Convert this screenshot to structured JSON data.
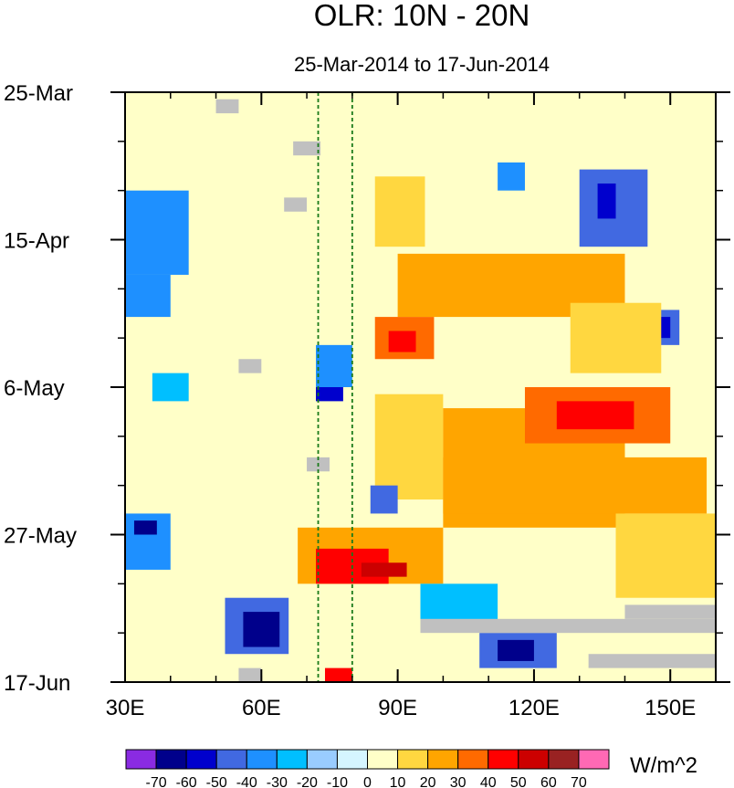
{
  "chart_data": {
    "type": "heatmap",
    "title": "OLR: 10N - 20N",
    "subtitle": "25-Mar-2014 to 17-Jun-2014",
    "x_ticks": [
      {
        "value": 30,
        "label": "30E"
      },
      {
        "value": 60,
        "label": "60E"
      },
      {
        "value": 90,
        "label": "90E"
      },
      {
        "value": 120,
        "label": "120E"
      },
      {
        "value": 150,
        "label": "150E"
      }
    ],
    "y_ticks": [
      {
        "day": 0,
        "label": "25-Mar"
      },
      {
        "day": 21,
        "label": "15-Apr"
      },
      {
        "day": 42,
        "label": "6-May"
      },
      {
        "day": 63,
        "label": "27-May"
      },
      {
        "day": 84,
        "label": "17-Jun"
      }
    ],
    "xlim": [
      30,
      160
    ],
    "ylim_days": [
      0,
      84
    ],
    "y_reversed": true,
    "reference_lines": [
      {
        "axis": "x",
        "value": 72.5,
        "style": "dashed",
        "color": "#1a7a1a"
      },
      {
        "axis": "x",
        "value": 80,
        "style": "dashed",
        "color": "#1a7a1a"
      }
    ],
    "colorbar": {
      "units": "W/m^2",
      "labels": [
        "-70",
        "-60",
        "-50",
        "-40",
        "-30",
        "-20",
        "-10",
        "0",
        "10",
        "20",
        "30",
        "40",
        "50",
        "60",
        "70"
      ],
      "colors": [
        "#8a2be2",
        "#00008b",
        "#0000cd",
        "#4169e1",
        "#1e90ff",
        "#00bfff",
        "#99ccff",
        "#d5f5ff",
        "#ffffc8",
        "#ffd740",
        "#ffa500",
        "#ff6a00",
        "#ff0000",
        "#cc0000",
        "#992222",
        "#ff69b4"
      ]
    },
    "missing_color": "#c0c0c0",
    "regions": [
      {
        "lon": [
          30,
          160
        ],
        "days": [
          0,
          84
        ],
        "value": 5
      },
      {
        "lon": [
          30,
          44
        ],
        "days": [
          14,
          26
        ],
        "value": -35
      },
      {
        "lon": [
          30,
          40
        ],
        "days": [
          60,
          68
        ],
        "value": -40
      },
      {
        "lon": [
          32,
          37
        ],
        "days": [
          61,
          63
        ],
        "value": -65
      },
      {
        "lon": [
          30,
          40
        ],
        "days": [
          26,
          32
        ],
        "value": -35
      },
      {
        "lon": [
          85,
          96
        ],
        "days": [
          12,
          22
        ],
        "value": 15
      },
      {
        "lon": [
          90,
          140
        ],
        "days": [
          23,
          32
        ],
        "value": 20
      },
      {
        "lon": [
          85,
          100
        ],
        "days": [
          43,
          58
        ],
        "value": 15
      },
      {
        "lon": [
          100,
          140
        ],
        "days": [
          45,
          62
        ],
        "value": 25
      },
      {
        "lon": [
          100,
          158
        ],
        "days": [
          52,
          60
        ],
        "value": 20
      },
      {
        "lon": [
          85,
          98
        ],
        "days": [
          32,
          38
        ],
        "value": 30
      },
      {
        "lon": [
          88,
          94
        ],
        "days": [
          34,
          37
        ],
        "value": 45
      },
      {
        "lon": [
          72,
          80
        ],
        "days": [
          36,
          42
        ],
        "value": -35
      },
      {
        "lon": [
          72,
          78
        ],
        "days": [
          42,
          44
        ],
        "value": -55
      },
      {
        "lon": [
          68,
          100
        ],
        "days": [
          62,
          70
        ],
        "value": 25
      },
      {
        "lon": [
          72,
          88
        ],
        "days": [
          65,
          70
        ],
        "value": 40
      },
      {
        "lon": [
          82,
          92
        ],
        "days": [
          67,
          69
        ],
        "value": 50
      },
      {
        "lon": [
          118,
          150
        ],
        "days": [
          42,
          50
        ],
        "value": 30
      },
      {
        "lon": [
          125,
          142
        ],
        "days": [
          44,
          48
        ],
        "value": 40
      },
      {
        "lon": [
          130,
          145
        ],
        "days": [
          11,
          22
        ],
        "value": -45
      },
      {
        "lon": [
          134,
          138
        ],
        "days": [
          13,
          18
        ],
        "value": -60
      },
      {
        "lon": [
          145,
          152
        ],
        "days": [
          31,
          36
        ],
        "value": -45
      },
      {
        "lon": [
          147,
          150
        ],
        "days": [
          32,
          35
        ],
        "value": -60
      },
      {
        "lon": [
          52,
          66
        ],
        "days": [
          72,
          80
        ],
        "value": -45
      },
      {
        "lon": [
          56,
          64
        ],
        "days": [
          74,
          79
        ],
        "value": -65
      },
      {
        "lon": [
          108,
          125
        ],
        "days": [
          77,
          82
        ],
        "value": -45
      },
      {
        "lon": [
          112,
          120
        ],
        "days": [
          78,
          81
        ],
        "value": -65
      },
      {
        "lon": [
          84,
          90
        ],
        "days": [
          56,
          60
        ],
        "value": -45
      },
      {
        "lon": [
          112,
          118
        ],
        "days": [
          10,
          14
        ],
        "value": -35
      },
      {
        "lon": [
          128,
          148
        ],
        "days": [
          30,
          40
        ],
        "value": 15
      },
      {
        "lon": [
          36,
          44
        ],
        "days": [
          40,
          44
        ],
        "value": -30
      },
      {
        "lon": [
          138,
          160
        ],
        "days": [
          60,
          72
        ],
        "value": 15
      },
      {
        "lon": [
          95,
          112
        ],
        "days": [
          70,
          76
        ],
        "value": -25
      },
      {
        "lon": [
          74,
          80
        ],
        "days": [
          82,
          84
        ],
        "value": 45
      }
    ],
    "missing_regions": [
      {
        "lon": [
          50,
          55
        ],
        "days": [
          1,
          3
        ]
      },
      {
        "lon": [
          67,
          73
        ],
        "days": [
          7,
          9
        ]
      },
      {
        "lon": [
          65,
          70
        ],
        "days": [
          15,
          17
        ]
      },
      {
        "lon": [
          55,
          60
        ],
        "days": [
          38,
          40
        ]
      },
      {
        "lon": [
          70,
          75
        ],
        "days": [
          52,
          54
        ]
      },
      {
        "lon": [
          95,
          160
        ],
        "days": [
          75,
          77
        ]
      },
      {
        "lon": [
          140,
          160
        ],
        "days": [
          73,
          75
        ]
      },
      {
        "lon": [
          132,
          160
        ],
        "days": [
          80,
          82
        ]
      },
      {
        "lon": [
          55,
          60
        ],
        "days": [
          82,
          84
        ]
      }
    ]
  }
}
